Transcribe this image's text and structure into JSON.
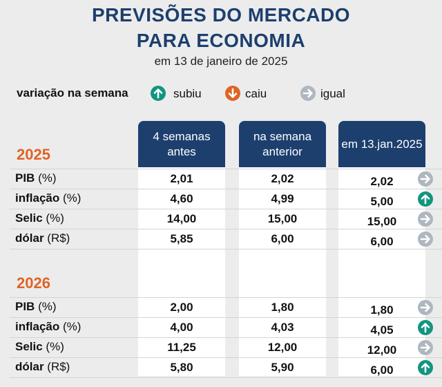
{
  "header": {
    "title_line1": "PREVISÕES DO MERCADO",
    "title_line2": "PARA ECONOMIA",
    "subtitle": "em 13 de janeiro de 2025"
  },
  "legend": {
    "label": "variação na semana",
    "items": [
      {
        "text": "subiu",
        "icon": "arrow-up-icon",
        "color": "#12957f"
      },
      {
        "text": "caiu",
        "icon": "arrow-down-icon",
        "color": "#e06323"
      },
      {
        "text": "igual",
        "icon": "arrow-right-icon",
        "color": "#aeb6bf"
      }
    ]
  },
  "columns": [
    "4 semanas antes",
    "na semana anterior",
    "em 13.jan.2025"
  ],
  "colors": {
    "navy": "#1c3f6e",
    "orange": "#e06323",
    "teal": "#12957f",
    "gray": "#aeb6bf"
  },
  "chart_data": {
    "type": "table",
    "title": "PREVISÕES DO MERCADO PARA ECONOMIA",
    "subtitle": "em 13 de janeiro de 2025",
    "columns": [
      "4 semanas antes",
      "na semana anterior",
      "em 13.jan.2025"
    ],
    "groups": [
      {
        "year": "2025",
        "rows": [
          {
            "label": "PIB",
            "unit": "(%)",
            "values": [
              "2,01",
              "2,02",
              "2,02"
            ],
            "change": "igual"
          },
          {
            "label": "inflação",
            "unit": "(%)",
            "values": [
              "4,60",
              "4,99",
              "5,00"
            ],
            "change": "subiu"
          },
          {
            "label": "Selic",
            "unit": "(%)",
            "values": [
              "14,00",
              "15,00",
              "15,00"
            ],
            "change": "igual"
          },
          {
            "label": "dólar",
            "unit": "(R$)",
            "values": [
              "5,85",
              "6,00",
              "6,00"
            ],
            "change": "igual"
          }
        ]
      },
      {
        "year": "2026",
        "rows": [
          {
            "label": "PIB",
            "unit": "(%)",
            "values": [
              "2,00",
              "1,80",
              "1,80"
            ],
            "change": "igual"
          },
          {
            "label": "inflação",
            "unit": "(%)",
            "values": [
              "4,00",
              "4,03",
              "4,05"
            ],
            "change": "subiu"
          },
          {
            "label": "Selic",
            "unit": "(%)",
            "values": [
              "11,25",
              "12,00",
              "12,00"
            ],
            "change": "igual"
          },
          {
            "label": "dólar",
            "unit": "(R$)",
            "values": [
              "5,80",
              "5,90",
              "6,00"
            ],
            "change": "subiu"
          }
        ]
      }
    ]
  }
}
